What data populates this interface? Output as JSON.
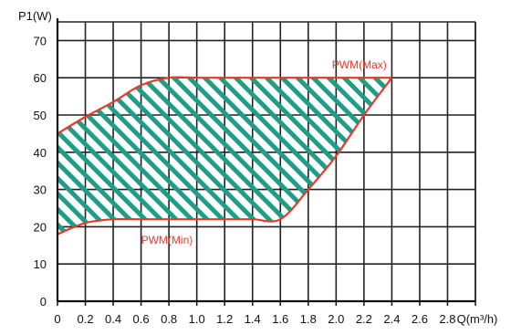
{
  "chart_data": {
    "type": "area",
    "ylabel": "P1(W)",
    "xlabel": "Q(m³/h)",
    "xlim": [
      0,
      3
    ],
    "ylim": [
      0,
      75
    ],
    "x_ticks": [
      "0",
      "0.2",
      "0.4",
      "0.6",
      "0.8",
      "1.0",
      "1.2",
      "1.4",
      "1.6",
      "1.8",
      "2.0",
      "2.2",
      "2.4",
      "2.6",
      "2.8"
    ],
    "y_ticks": [
      "0",
      "10",
      "20",
      "30",
      "40",
      "50",
      "60",
      "70"
    ],
    "grid": true,
    "fill": "diagonal-hatch",
    "series": [
      {
        "name": "PWM(Max)",
        "x": [
          0,
          0.2,
          0.4,
          0.6,
          0.8,
          1.0,
          1.2,
          1.4,
          1.6,
          1.8,
          2.0,
          2.2,
          2.4
        ],
        "y": [
          45,
          49.5,
          53.5,
          58,
          60,
          60,
          60,
          60,
          60,
          60,
          60,
          60,
          60
        ]
      },
      {
        "name": "PWM(Min)",
        "x": [
          0,
          0.2,
          0.4,
          0.6,
          0.8,
          1.0,
          1.2,
          1.4,
          1.6,
          1.8,
          2.0,
          2.2,
          2.4
        ],
        "y": [
          18,
          21,
          22,
          22,
          22,
          22,
          22,
          22,
          22,
          30,
          39,
          50,
          60
        ]
      }
    ],
    "colors": {
      "curve": "#e8392a",
      "hatch": "#1e9e86",
      "grid": "#222222",
      "label": "#e8392a"
    }
  }
}
